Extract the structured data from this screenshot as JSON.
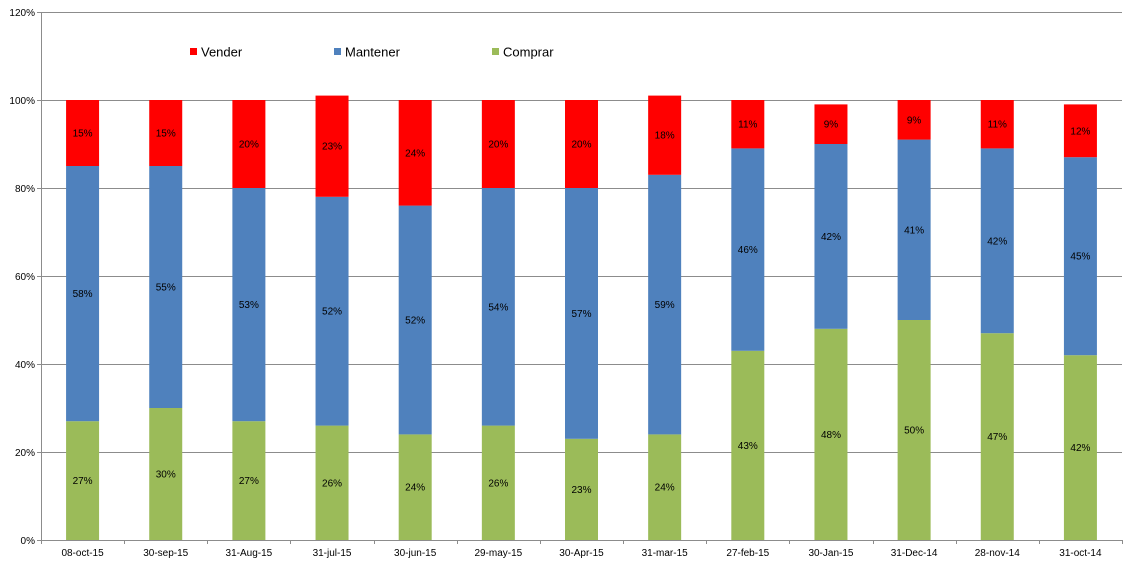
{
  "chart_data": {
    "type": "bar",
    "stacked": true,
    "categories": [
      "08-oct-15",
      "30-sep-15",
      "31-Aug-15",
      "31-jul-15",
      "30-jun-15",
      "29-may-15",
      "30-Apr-15",
      "31-mar-15",
      "27-feb-15",
      "30-Jan-15",
      "31-Dec-14",
      "28-nov-14",
      "31-oct-14"
    ],
    "series": [
      {
        "name": "Comprar",
        "color": "#9BBB59",
        "values": [
          27,
          30,
          27,
          26,
          24,
          26,
          23,
          24,
          43,
          48,
          50,
          47,
          42
        ],
        "labels": [
          "27%",
          "30%",
          "27%",
          "26%",
          "24%",
          "26%",
          "23%",
          "24%",
          "43%",
          "48%",
          "50%",
          "47%",
          "42%"
        ]
      },
      {
        "name": "Mantener",
        "color": "#4F81BD",
        "values": [
          58,
          55,
          53,
          52,
          52,
          54,
          57,
          59,
          46,
          42,
          41,
          42,
          45
        ],
        "labels": [
          "58%",
          "55%",
          "53%",
          "52%",
          "52%",
          "54%",
          "57%",
          "59%",
          "46%",
          "42%",
          "41%",
          "42%",
          "45%"
        ]
      },
      {
        "name": "Vender",
        "color": "#FF0000",
        "values": [
          15,
          15,
          20,
          23,
          24,
          20,
          20,
          18,
          11,
          9,
          9,
          11,
          12
        ],
        "labels": [
          "15%",
          "15%",
          "20%",
          "23%",
          "24%",
          "20%",
          "20%",
          "18%",
          "11%",
          "9%",
          "9%",
          "11%",
          "12%"
        ]
      }
    ],
    "legend_order": [
      "Vender",
      "Mantener",
      "Comprar"
    ],
    "legend_placement": "top-left inside plot",
    "ylim": [
      0,
      120
    ],
    "yticks": [
      0,
      20,
      40,
      60,
      80,
      100,
      120
    ],
    "ytick_labels": [
      "0%",
      "20%",
      "40%",
      "60%",
      "80%",
      "100%",
      "120%"
    ],
    "grid": true,
    "title": "",
    "xlabel": "",
    "ylabel": ""
  }
}
